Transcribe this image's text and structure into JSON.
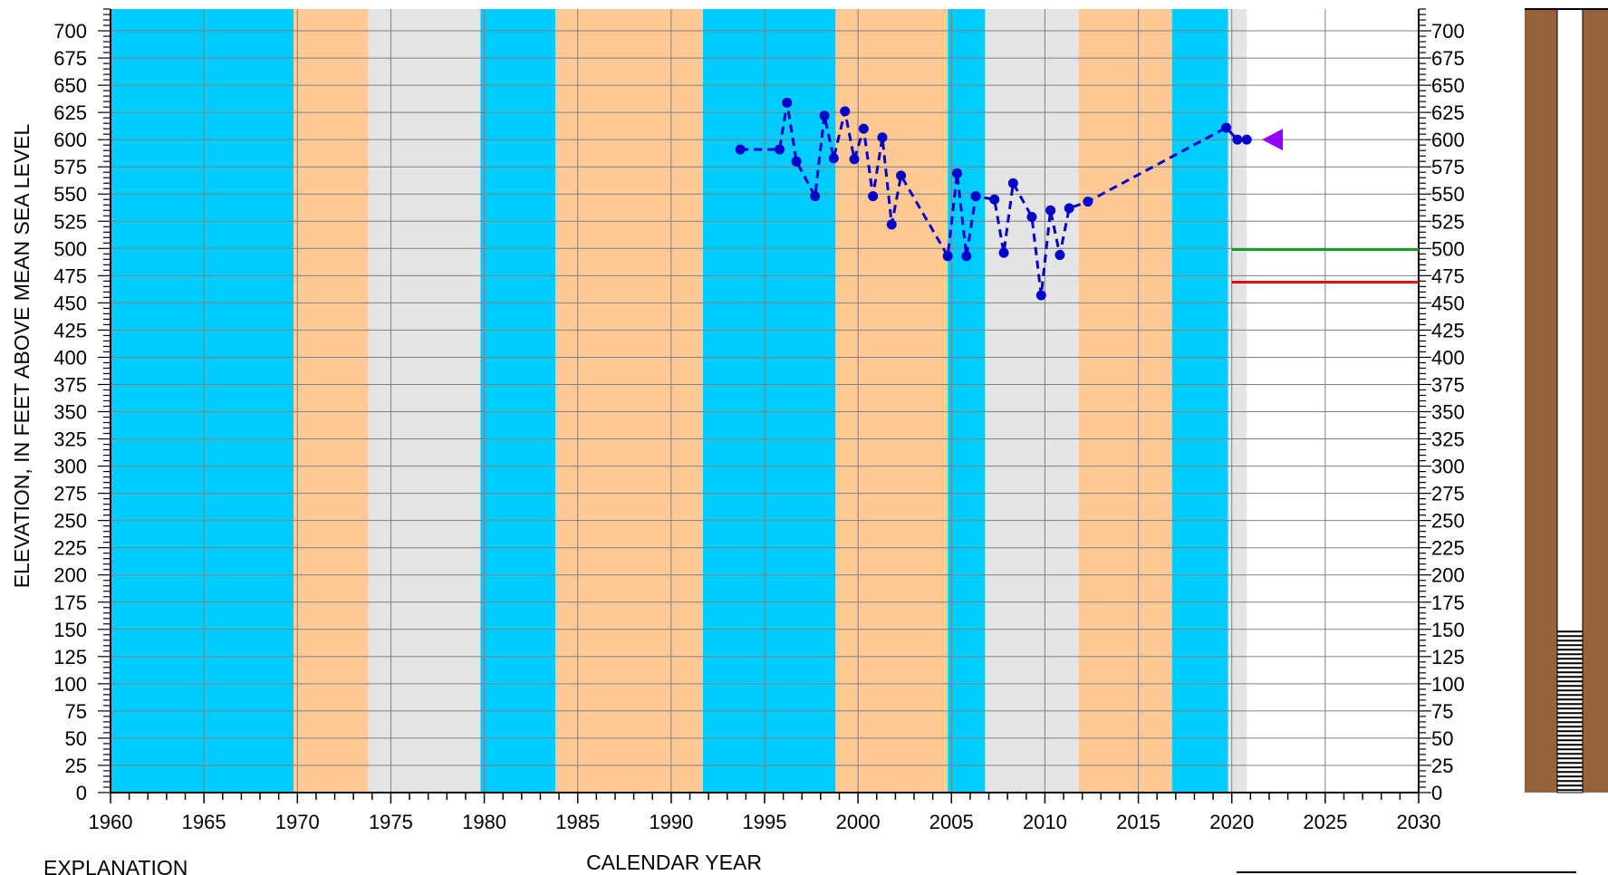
{
  "chart_data": {
    "type": "line",
    "xlabel": "CALENDAR YEAR",
    "ylabel": "ELEVATION, IN FEET ABOVE MEAN SEA LEVEL",
    "xlim": [
      1960,
      2030
    ],
    "ylim": [
      0,
      720
    ],
    "grid": true,
    "x_ticks": [
      "1960",
      "1965",
      "1970",
      "1975",
      "1980",
      "1985",
      "1990",
      "1995",
      "2000",
      "2005",
      "2010",
      "2015",
      "2020",
      "2025",
      "2030"
    ],
    "y_ticks": [
      "0",
      "25",
      "50",
      "75",
      "100",
      "125",
      "150",
      "175",
      "200",
      "225",
      "250",
      "275",
      "300",
      "325",
      "350",
      "375",
      "400",
      "425",
      "450",
      "475",
      "500",
      "525",
      "550",
      "575",
      "600",
      "625",
      "650",
      "675",
      "700"
    ],
    "background_periods": [
      {
        "start": 1960.0,
        "end": 1969.8,
        "color": "#00ccff"
      },
      {
        "start": 1969.8,
        "end": 1973.8,
        "color": "#fec994"
      },
      {
        "start": 1973.8,
        "end": 1979.8,
        "color": "#e4e4e4"
      },
      {
        "start": 1979.8,
        "end": 1983.8,
        "color": "#00ccff"
      },
      {
        "start": 1983.8,
        "end": 1991.7,
        "color": "#fec994"
      },
      {
        "start": 1991.7,
        "end": 1998.8,
        "color": "#00ccff"
      },
      {
        "start": 1998.8,
        "end": 2004.8,
        "color": "#fec994"
      },
      {
        "start": 2004.8,
        "end": 2006.8,
        "color": "#00ccff"
      },
      {
        "start": 2006.8,
        "end": 2011.8,
        "color": "#e4e4e4"
      },
      {
        "start": 2011.8,
        "end": 2016.8,
        "color": "#fec994"
      },
      {
        "start": 2016.8,
        "end": 2019.8,
        "color": "#00ccff"
      },
      {
        "start": 2019.8,
        "end": 2020.8,
        "color": "#e4e4e4"
      }
    ],
    "series": [
      {
        "color": "#0000cc",
        "points": [
          [
            1993.7,
            591
          ],
          [
            1995.8,
            591
          ],
          [
            1996.2,
            634
          ],
          [
            1996.7,
            580
          ],
          [
            1997.7,
            548
          ],
          [
            1998.2,
            622
          ],
          [
            1998.7,
            583
          ],
          [
            1999.3,
            626
          ],
          [
            1999.8,
            582
          ],
          [
            2000.3,
            610
          ],
          [
            2000.8,
            548
          ],
          [
            2001.3,
            602
          ],
          [
            2001.8,
            522
          ],
          [
            2002.3,
            567
          ],
          [
            2004.8,
            493
          ],
          [
            2005.3,
            569
          ],
          [
            2005.8,
            493
          ],
          [
            2006.3,
            548
          ],
          [
            2007.3,
            545
          ],
          [
            2007.8,
            496
          ],
          [
            2008.3,
            560
          ],
          [
            2009.3,
            529
          ],
          [
            2009.8,
            457
          ],
          [
            2010.3,
            535
          ],
          [
            2010.8,
            494
          ],
          [
            2011.3,
            537
          ],
          [
            2012.3,
            543
          ],
          [
            2019.7,
            611
          ],
          [
            2020.3,
            600
          ],
          [
            2020.8,
            600
          ]
        ]
      }
    ],
    "reference_lines": [
      {
        "y": 499,
        "x_start": 2020.0,
        "x_end": 2030.0,
        "color": "#1a9a2a"
      },
      {
        "y": 469,
        "x_start": 2020.0,
        "x_end": 2030.0,
        "color": "#e01010"
      }
    ],
    "marker": {
      "x": 2022.2,
      "y": 600,
      "color": "#9400ff",
      "shape": "left-triangle"
    }
  },
  "explanation": {
    "heading": "EXPLANATION"
  },
  "well_column": {
    "top_elevation": 720,
    "screen_top_elevation": 148,
    "bottom_elevation": 0,
    "casing_color": "#966239"
  }
}
